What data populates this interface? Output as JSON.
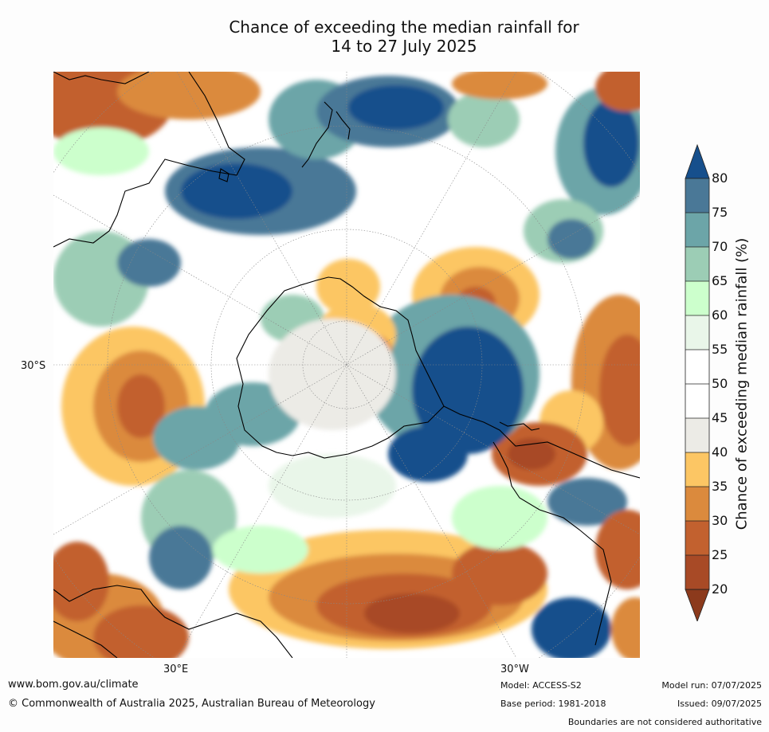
{
  "title_line1": "Chance of exceeding the median rainfall for",
  "title_line2": "14 to 27 July 2025",
  "map_labels": {
    "lon_east": "30°E",
    "lon_west": "30°W",
    "lat": "30°S"
  },
  "legend": {
    "title": "Chance of exceeding median rainfall (%)",
    "ticks": [
      "20",
      "25",
      "30",
      "35",
      "40",
      "45",
      "50",
      "55",
      "60",
      "65",
      "70",
      "75",
      "80"
    ],
    "colors": {
      "below20": "#8c3a1c",
      "20-25": "#a84a26",
      "25-30": "#c2612f",
      "30-35": "#db8a3d",
      "35-40": "#fcc664",
      "40-45": "#ecebe6",
      "45-50": "#ffffff",
      "50-55": "#ffffff",
      "55-60": "#e9f6e9",
      "60-65": "#ccffcc",
      "65-70": "#9ccdb5",
      "70-75": "#6ca5a8",
      "75-80": "#4a7897",
      "above80": "#164f8c"
    }
  },
  "footer": {
    "website": "www.bom.gov.au/climate",
    "copyright": "© Commonwealth of Australia 2025, Australian Bureau of Meteorology",
    "model": "Model: ACCESS-S2",
    "base_period": "Base period: 1981-2018",
    "model_run": "Model run: 07/07/2025",
    "issued": "Issued: 09/07/2025",
    "disclaimer": "Boundaries are not considered authoritative"
  }
}
